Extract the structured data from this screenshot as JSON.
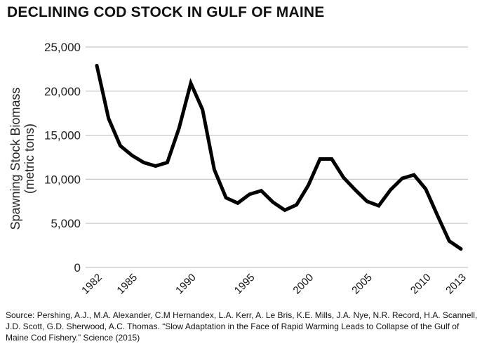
{
  "chart_data": {
    "type": "line",
    "title": "DECLINING COD STOCK IN GULF OF MAINE",
    "ylabel": "Spawning Stock Biomass (metric tons)",
    "ylabel_lines": [
      "Spawning Stock Biomass",
      "(metric tons)"
    ],
    "xlabel": "",
    "ylim": [
      0,
      25000
    ],
    "yticks": [
      0,
      5000,
      10000,
      15000,
      20000,
      25000
    ],
    "ytick_labels": [
      "0",
      "5,000",
      "10,000",
      "15,000",
      "20,000",
      "25,000"
    ],
    "xticks": [
      1982,
      1985,
      1990,
      1995,
      2000,
      2005,
      2010,
      2013
    ],
    "xtick_labels": [
      "1982",
      "1985",
      "1990",
      "1995",
      "2000",
      "2005",
      "2010",
      "2013"
    ],
    "grid": "horizontal",
    "line_color": "#000000",
    "x": [
      1982,
      1983,
      1984,
      1985,
      1986,
      1987,
      1988,
      1989,
      1990,
      1991,
      1992,
      1993,
      1994,
      1995,
      1996,
      1997,
      1998,
      1999,
      2000,
      2001,
      2002,
      2003,
      2004,
      2005,
      2006,
      2007,
      2008,
      2009,
      2010,
      2011,
      2012,
      2013
    ],
    "values": [
      22900,
      16900,
      13800,
      12700,
      11900,
      11500,
      11900,
      15800,
      20900,
      17900,
      11100,
      7900,
      7300,
      8300,
      8700,
      7400,
      6500,
      7100,
      9300,
      12300,
      12300,
      10200,
      8800,
      7500,
      7000,
      8800,
      10100,
      10500,
      8900,
      5900,
      3000,
      2100
    ]
  },
  "source": "Source: Pershing, A.J., M.A. Alexander, C.M Hernandex, L.A. Kerr, A. Le Bris, K.E. Mills, J.A. Nye, N.R. Record, H.A. Scannell, J.D. Scott, G.D. Sherwood, A.C. Thomas. “Slow Adaptation in the Face of Rapid Warming Leads to Collapse of the Gulf of Maine Cod Fishery.” Science (2015)"
}
